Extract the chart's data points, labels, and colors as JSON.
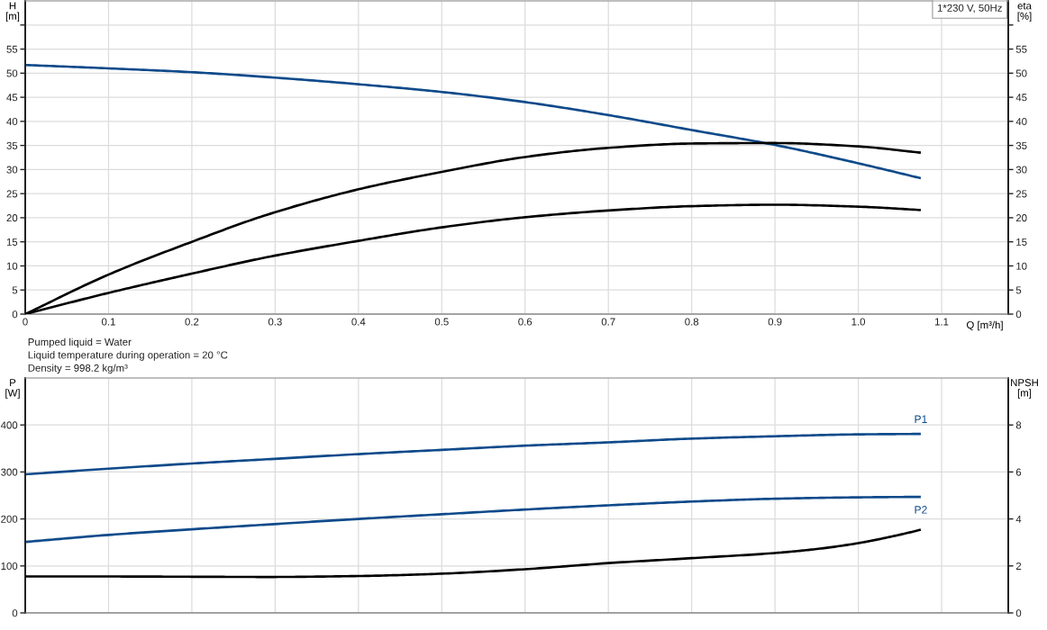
{
  "chart_data": [
    {
      "type": "line",
      "title": "1*230 V, 50Hz",
      "xlabel": "Q [m³/h]",
      "ylabel": "H\n[m]",
      "y2label": "eta\n[%]",
      "annotations": [
        "Pumped liquid = Water",
        "Liquid temperature during operation = 20 °C",
        "Density = 998.2 kg/m³"
      ],
      "x": [
        0,
        0.1,
        0.2,
        0.29,
        0.4,
        0.5,
        0.6,
        0.7,
        0.8,
        0.9,
        1.0,
        1.075
      ],
      "xlim": [
        0,
        1.18
      ],
      "xticks": [
        0,
        0.1,
        0.2,
        0.3,
        0.4,
        0.5,
        0.6,
        0.7,
        0.8,
        0.9,
        {
          "value": 1,
          "label": "1.0"
        },
        1.1
      ],
      "ylim": [
        0,
        65
      ],
      "yticks": [
        0,
        5,
        10,
        15,
        20,
        25,
        30,
        35,
        40,
        45,
        50,
        55,
        {
          "value": 60,
          "label": null
        }
      ],
      "y2lim": [
        0,
        65
      ],
      "y2ticks": [
        0,
        5,
        10,
        15,
        20,
        25,
        30,
        35,
        40,
        45,
        50,
        55,
        {
          "value": 60,
          "label": null
        }
      ],
      "grid": true,
      "series": [
        {
          "color": "#0e4a8a",
          "values": [
            51.7,
            51.0,
            50.2,
            49.2,
            47.7,
            46.1,
            44.0,
            41.3,
            38.2,
            35.1,
            31.3,
            28.2
          ]
        },
        {
          "color": "#000000",
          "axis": "y2",
          "values": [
            0,
            8.2,
            15.0,
            20.6,
            25.9,
            29.5,
            32.6,
            34.5,
            35.4,
            35.5,
            34.8,
            33.5
          ]
        },
        {
          "color": "#000000",
          "axis": "y2",
          "values": [
            0,
            4.4,
            8.4,
            11.8,
            15.2,
            18.0,
            20.1,
            21.5,
            22.4,
            22.7,
            22.3,
            21.6
          ]
        }
      ]
    },
    {
      "type": "line",
      "ylabel": "P\n[W]",
      "y2label": "NPSH\n[m]",
      "x": [
        0,
        0.1,
        0.2,
        0.29,
        0.4,
        0.5,
        0.6,
        0.7,
        0.8,
        0.9,
        1.0,
        1.075
      ],
      "xlim": [
        0,
        1.18
      ],
      "xticks": [
        0,
        0.1,
        0.2,
        0.3,
        0.4,
        0.5,
        0.6,
        0.7,
        0.8,
        0.9,
        1.0,
        1.1
      ],
      "ylim": [
        0,
        500
      ],
      "yticks": [
        0,
        100,
        200,
        300,
        400
      ],
      "y2lim": [
        0,
        10
      ],
      "y2ticks": [
        0,
        2,
        4,
        6,
        8
      ],
      "grid": true,
      "tick_labels": "y",
      "series": [
        {
          "name": "P1",
          "color": "#0e4a8a",
          "values": [
            295,
            307,
            318,
            327,
            338,
            347,
            356,
            363,
            371,
            376,
            380,
            381
          ]
        },
        {
          "name": "P2",
          "color": "#0e4a8a",
          "values": [
            151,
            166,
            178,
            188,
            200,
            210,
            220,
            229,
            237,
            243,
            246,
            247
          ]
        },
        {
          "color": "#000000",
          "axis": "y2",
          "x": [
            0,
            0.1,
            0.2,
            0.29,
            0.4,
            0.5,
            0.6,
            0.7,
            0.8,
            0.9,
            0.95,
            1.0,
            1.05,
            1.075
          ],
          "values": [
            1.55,
            1.55,
            1.54,
            1.53,
            1.57,
            1.67,
            1.86,
            2.12,
            2.33,
            2.55,
            2.72,
            2.97,
            3.33,
            3.54
          ]
        }
      ]
    }
  ]
}
